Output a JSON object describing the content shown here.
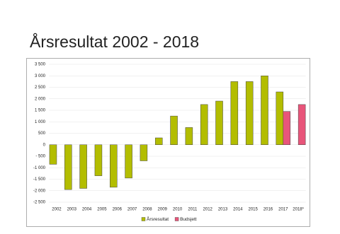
{
  "chart_data": {
    "type": "bar",
    "title": "Årsresultat 2002 - 2018",
    "categories": [
      "2002",
      "2003",
      "2004",
      "2005",
      "2006",
      "2007",
      "2008",
      "2009",
      "2010",
      "2011",
      "2012",
      "2013",
      "2014",
      "2015",
      "2016",
      "2017",
      "2018*"
    ],
    "series": [
      {
        "name": "Årsresultat",
        "color": "#b3bd00",
        "values": [
          -850,
          -1950,
          -1900,
          -1350,
          -1850,
          -1450,
          -700,
          300,
          1250,
          750,
          1750,
          1900,
          2750,
          2750,
          3000,
          2300,
          null
        ]
      },
      {
        "name": "Budsjett",
        "color": "#e8557a",
        "values": [
          null,
          null,
          null,
          null,
          null,
          null,
          null,
          null,
          null,
          null,
          null,
          null,
          null,
          null,
          null,
          1450,
          1750
        ]
      }
    ],
    "ylim": [
      -2500,
      3500
    ],
    "yticks": [
      {
        "value": -2500,
        "label": "-2 500"
      },
      {
        "value": -2000,
        "label": "-2 000"
      },
      {
        "value": -1500,
        "label": "-1 500"
      },
      {
        "value": -1000,
        "label": "-1 000"
      },
      {
        "value": -500,
        "label": "- 500"
      },
      0,
      {
        "value": 500,
        "label": "500"
      },
      {
        "value": 1000,
        "label": "1 000"
      },
      {
        "value": 1500,
        "label": "1 500"
      },
      {
        "value": 2000,
        "label": "2 000"
      },
      {
        "value": 2500,
        "label": "2 500"
      },
      {
        "value": 3000,
        "label": "3 000"
      },
      {
        "value": 3500,
        "label": "3 500"
      }
    ],
    "grid": true,
    "legend": "bottom"
  }
}
